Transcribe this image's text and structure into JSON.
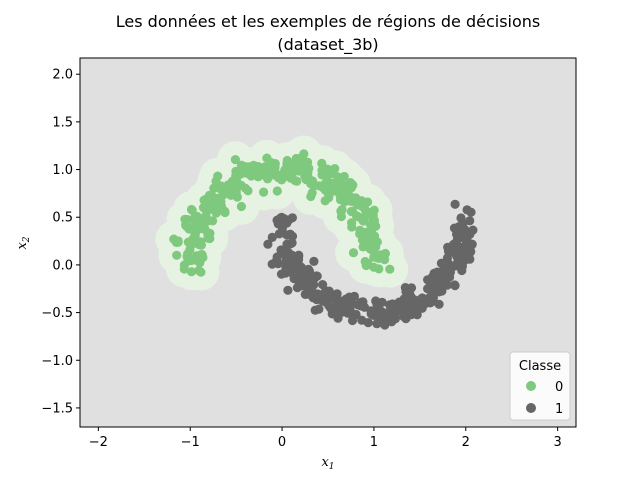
{
  "chart_data": {
    "type": "scatter",
    "title_line1": "Les données et les exemples de régions de décisions",
    "title_line2": "(dataset_3b)",
    "xlabel_base": "x",
    "xlabel_sub": "1",
    "ylabel_base": "x",
    "ylabel_sub": "2",
    "xlim": [
      -2.2,
      3.2
    ],
    "ylim": [
      -1.7,
      2.17
    ],
    "xticks": [
      -2,
      -1,
      0,
      1,
      2,
      3
    ],
    "yticks": [
      -1.5,
      -1.0,
      -0.5,
      0.0,
      0.5,
      1.0,
      1.5,
      2.0
    ],
    "grid": false,
    "legend": {
      "title": "Classe",
      "placement": "lower-right",
      "entries": [
        "0",
        "1"
      ]
    },
    "background_color": "#e0e0e0",
    "region0_color": "#e6f3e3",
    "series": [
      {
        "name": "0",
        "color": "#7fc97f",
        "count": 300,
        "shape": "upper-moon",
        "center_x": 0.0,
        "center_y": 0.0,
        "angle_range_deg": [
          0,
          180
        ],
        "radius": 1.0,
        "noise": 0.08
      },
      {
        "name": "1",
        "color": "#666666",
        "count": 300,
        "shape": "lower-moon",
        "center_x": 1.0,
        "center_y": 0.5,
        "angle_range_deg": [
          180,
          360
        ],
        "radius": 1.0,
        "noise": 0.08
      }
    ]
  }
}
